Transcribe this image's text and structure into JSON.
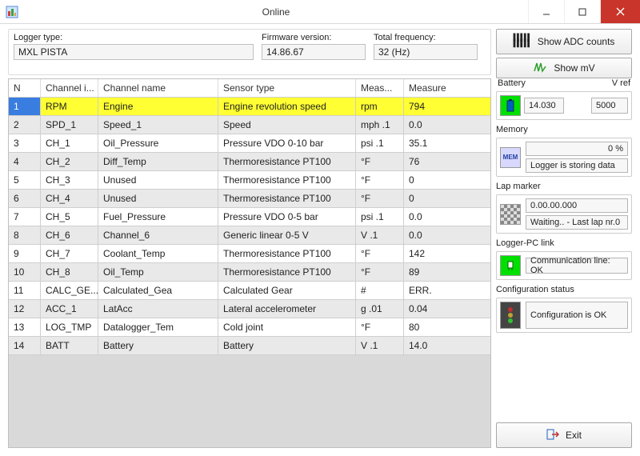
{
  "window": {
    "title": "Online"
  },
  "info": {
    "logger_label": "Logger type:",
    "logger_value": "MXL PISTA",
    "fw_label": "Firmware version:",
    "fw_value": "14.86.67",
    "freq_label": "Total frequency:",
    "freq_value": "32 (Hz)"
  },
  "table": {
    "headers": {
      "n": "N",
      "ci": "Channel i...",
      "cn": "Channel name",
      "st": "Sensor type",
      "mu": "Meas...",
      "mv": "Measure"
    },
    "rows": [
      {
        "n": "1",
        "ci": "RPM",
        "cn": "Engine",
        "st": "Engine revolution speed",
        "mu": "rpm",
        "mv": "794",
        "selected": true
      },
      {
        "n": "2",
        "ci": "SPD_1",
        "cn": "Speed_1",
        "st": "Speed",
        "mu": "mph  .1",
        "mv": "0.0"
      },
      {
        "n": "3",
        "ci": "CH_1",
        "cn": "Oil_Pressure",
        "st": "Pressure VDO 0-10 bar",
        "mu": "psi  .1",
        "mv": "35.1"
      },
      {
        "n": "4",
        "ci": "CH_2",
        "cn": "Diff_Temp",
        "st": "Thermoresistance PT100",
        "mu": "°F",
        "mv": "76"
      },
      {
        "n": "5",
        "ci": "CH_3",
        "cn": "Unused",
        "st": "Thermoresistance PT100",
        "mu": "°F",
        "mv": "0"
      },
      {
        "n": "6",
        "ci": "CH_4",
        "cn": "Unused",
        "st": "Thermoresistance PT100",
        "mu": "°F",
        "mv": "0"
      },
      {
        "n": "7",
        "ci": "CH_5",
        "cn": "Fuel_Pressure",
        "st": "Pressure VDO 0-5 bar",
        "mu": "psi  .1",
        "mv": "0.0"
      },
      {
        "n": "8",
        "ci": "CH_6",
        "cn": "Channel_6",
        "st": "Generic linear 0-5 V",
        "mu": "V  .1",
        "mv": "0.0"
      },
      {
        "n": "9",
        "ci": "CH_7",
        "cn": "Coolant_Temp",
        "st": "Thermoresistance PT100",
        "mu": "°F",
        "mv": "142"
      },
      {
        "n": "10",
        "ci": "CH_8",
        "cn": "Oil_Temp",
        "st": "Thermoresistance PT100",
        "mu": "°F",
        "mv": "89"
      },
      {
        "n": "11",
        "ci": "CALC_GE...",
        "cn": "Calculated_Gea",
        "st": "Calculated Gear",
        "mu": "#",
        "mv": "ERR."
      },
      {
        "n": "12",
        "ci": "ACC_1",
        "cn": "LatAcc",
        "st": "Lateral accelerometer",
        "mu": "g  .01",
        "mv": "0.04"
      },
      {
        "n": "13",
        "ci": "LOG_TMP",
        "cn": "Datalogger_Tem",
        "st": "Cold joint",
        "mu": "°F",
        "mv": "80"
      },
      {
        "n": "14",
        "ci": "BATT",
        "cn": "Battery",
        "st": "Battery",
        "mu": "V  .1",
        "mv": "14.0"
      }
    ]
  },
  "right": {
    "show_adc": "Show ADC counts",
    "show_mv": "Show mV",
    "battery_label": "Battery",
    "vref_label": "V ref",
    "battery_value": "14.030",
    "vref_value": "5000",
    "memory_label": "Memory",
    "memory_pct": "0 %",
    "memory_status": "Logger is storing data",
    "lap_label": "Lap marker",
    "lap_time": "0.00.00.000",
    "lap_status": "Waiting.. - Last lap nr.0",
    "link_label": "Logger-PC link",
    "link_status": "Communication line: OK",
    "config_label": "Configuration status",
    "config_status": "Configuration is OK",
    "exit": "Exit"
  },
  "colors": {
    "highlight_n_bg": "#3a7de0",
    "highlight_rest_bg": "#ffff33",
    "battery_icon_bg": "#00e000",
    "link_icon_bg": "#00e000"
  }
}
